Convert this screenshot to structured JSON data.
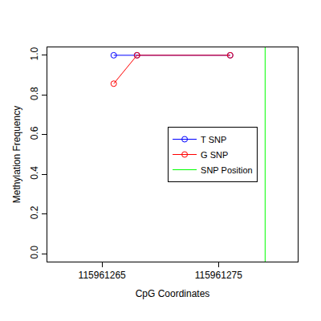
{
  "chart_data": {
    "type": "line",
    "x_label": "CpG Coordinates",
    "y_label": "Methylation Frequency",
    "xlim": [
      115961260.3,
      115961281.8
    ],
    "xticks": [
      115961265,
      115961275
    ],
    "ylim": [
      -0.04,
      1.04
    ],
    "yticks": [
      {
        "value": 0,
        "label": "0.0"
      },
      {
        "value": 0.2,
        "label": "0.2"
      },
      {
        "value": 0.4,
        "label": "0.4"
      },
      {
        "value": 0.6,
        "label": "0.6"
      },
      {
        "value": 0.8,
        "label": "0.8"
      },
      {
        "value": 1,
        "label": "1.0"
      }
    ],
    "grid": false,
    "legend": "right",
    "marker": "open circle",
    "series": [
      {
        "name": "T SNP",
        "color": "#0000ff",
        "x": [
          115961266,
          115961268,
          115961276
        ],
        "values": [
          1.0,
          1.0,
          1.0
        ]
      },
      {
        "name": "G SNP",
        "color": "#ff0000",
        "x": [
          115961266,
          115961268,
          115961276
        ],
        "values": [
          0.857,
          1.0,
          1.0
        ]
      }
    ],
    "snp_position": {
      "name": "SNP Position",
      "color": "#00ff00",
      "x": 115961279
    }
  }
}
